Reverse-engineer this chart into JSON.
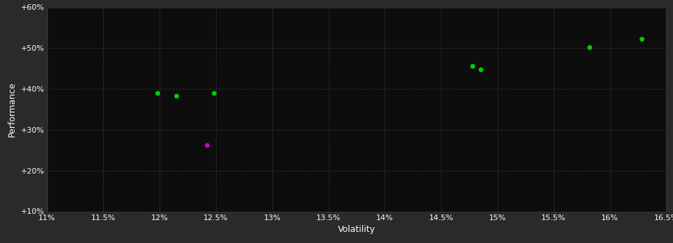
{
  "background_color": "#2a2a2a",
  "plot_bg_color": "#0d0d0d",
  "grid_color": "#3a3a3a",
  "text_color": "#ffffff",
  "xlabel": "Volatility",
  "ylabel": "Performance",
  "xlim": [
    0.11,
    0.165
  ],
  "ylim": [
    0.1,
    0.6
  ],
  "xticks": [
    0.11,
    0.115,
    0.12,
    0.125,
    0.13,
    0.135,
    0.14,
    0.145,
    0.15,
    0.155,
    0.16,
    0.165
  ],
  "yticks": [
    0.1,
    0.2,
    0.3,
    0.4,
    0.5,
    0.6
  ],
  "xtick_labels": [
    "11%",
    "11.5%",
    "12%",
    "12.5%",
    "13%",
    "13.5%",
    "14%",
    "14.5%",
    "15%",
    "15.5%",
    "16%",
    "16.5%"
  ],
  "ytick_labels": [
    "+10%",
    "+20%",
    "+30%",
    "+40%",
    "+50%",
    "+60%"
  ],
  "green_points": [
    [
      0.1198,
      0.39
    ],
    [
      0.1215,
      0.383
    ],
    [
      0.1248,
      0.39
    ],
    [
      0.1478,
      0.456
    ],
    [
      0.1485,
      0.447
    ],
    [
      0.1582,
      0.503
    ],
    [
      0.1628,
      0.523
    ]
  ],
  "magenta_points": [
    [
      0.1242,
      0.263
    ]
  ],
  "green_color": "#00cc00",
  "magenta_color": "#cc00cc",
  "marker_size": 5,
  "axis_fontsize": 9,
  "tick_fontsize": 8
}
